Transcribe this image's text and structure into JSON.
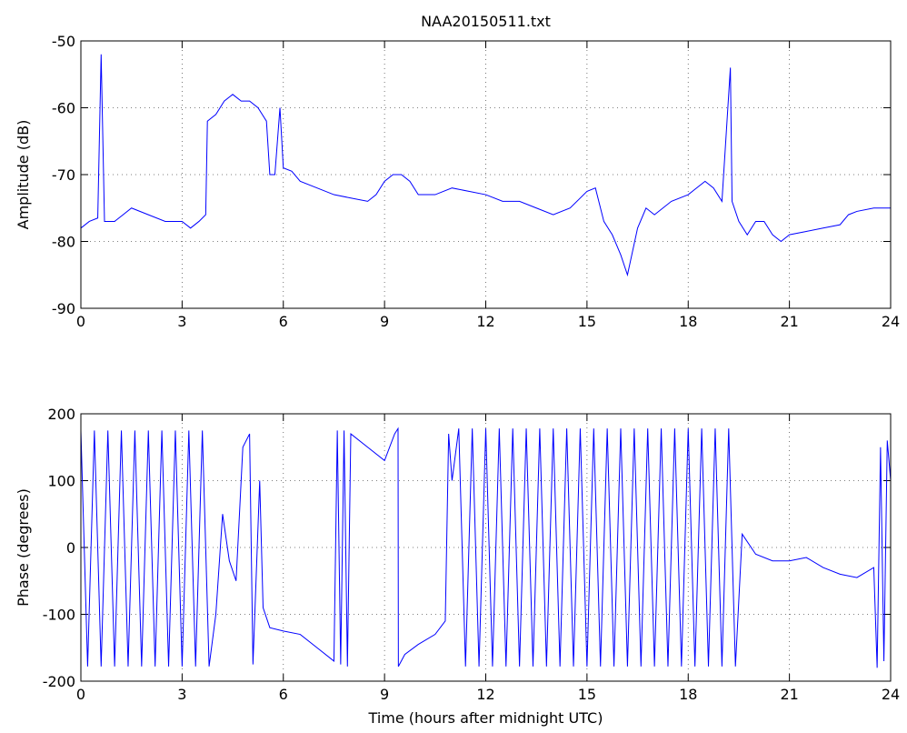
{
  "chart_data": [
    {
      "type": "line",
      "title": "NAA20150511.txt",
      "ylabel": "Amplitude (dB)",
      "grid": true,
      "xlim": [
        0,
        24
      ],
      "xticks": [
        0,
        3,
        6,
        9,
        12,
        15,
        18,
        21,
        24
      ],
      "ylim": [
        -90,
        -50
      ],
      "yticks": [
        -90,
        -80,
        -70,
        -60,
        -50
      ],
      "x": [
        0,
        0.25,
        0.5,
        0.6,
        0.7,
        1,
        1.25,
        1.5,
        2,
        2.5,
        3,
        3.25,
        3.5,
        3.7,
        3.75,
        4,
        4.25,
        4.5,
        4.75,
        5,
        5.25,
        5.5,
        5.6,
        5.75,
        5.9,
        6,
        6.25,
        6.5,
        7,
        7.5,
        8,
        8.5,
        8.75,
        9,
        9.25,
        9.5,
        9.75,
        10,
        10.5,
        11,
        11.5,
        12,
        12.5,
        13,
        13.5,
        14,
        14.5,
        15,
        15.25,
        15.5,
        15.75,
        16,
        16.2,
        16.5,
        16.75,
        17,
        17.5,
        18,
        18.5,
        18.75,
        19,
        19.25,
        19.3,
        19.5,
        19.75,
        20,
        20.25,
        20.5,
        20.75,
        21,
        21.5,
        22,
        22.5,
        22.75,
        23,
        23.5,
        24
      ],
      "series": [
        {
          "color": "#0000ff",
          "values": [
            -78,
            -77,
            -76.5,
            -52,
            -77,
            -77,
            -76,
            -75,
            -76,
            -77,
            -77,
            -78,
            -77,
            -76,
            -62,
            -61,
            -59,
            -58,
            -59,
            -59,
            -60,
            -62,
            -70,
            -70,
            -60,
            -69,
            -69.5,
            -71,
            -72,
            -73,
            -73.5,
            -74,
            -73,
            -71,
            -70,
            -70,
            -71,
            -73,
            -73,
            -72,
            -72.5,
            -73,
            -74,
            -74,
            -75,
            -76,
            -75,
            -72.5,
            -72,
            -77,
            -79,
            -82,
            -85,
            -78,
            -75,
            -76,
            -74,
            -73,
            -71,
            -72,
            -74,
            -54,
            -74,
            -77,
            -79,
            -77,
            -77,
            -79,
            -80,
            -79,
            -78.5,
            -78,
            -77.5,
            -76,
            -75.5,
            -75,
            -75
          ]
        }
      ]
    },
    {
      "type": "line",
      "ylabel": "Phase (degrees)",
      "xlabel": "Time (hours after midnight UTC)",
      "grid": true,
      "xlim": [
        0,
        24
      ],
      "xticks": [
        0,
        3,
        6,
        9,
        12,
        15,
        18,
        21,
        24
      ],
      "ylim": [
        -200,
        200
      ],
      "yticks": [
        -200,
        -100,
        0,
        100,
        200
      ],
      "x": [
        0,
        0.2,
        0.4,
        0.6,
        0.8,
        1,
        1.2,
        1.4,
        1.6,
        1.8,
        2,
        2.2,
        2.4,
        2.6,
        2.8,
        3,
        3.2,
        3.4,
        3.6,
        3.8,
        4,
        4.2,
        4.4,
        4.6,
        4.8,
        5,
        5.1,
        5.3,
        5.4,
        5.6,
        6,
        6.5,
        7,
        7.5,
        7.6,
        7.7,
        7.8,
        7.9,
        8,
        8.5,
        9,
        9.3,
        9.4,
        9.41,
        9.6,
        10,
        10.5,
        10.8,
        10.9,
        11,
        11.2,
        11.4,
        11.6,
        11.8,
        12,
        12.2,
        12.4,
        12.6,
        12.8,
        13,
        13.2,
        13.4,
        13.6,
        13.8,
        14,
        14.2,
        14.4,
        14.6,
        14.8,
        15,
        15.2,
        15.4,
        15.6,
        15.8,
        16,
        16.2,
        16.4,
        16.6,
        16.8,
        17,
        17.2,
        17.4,
        17.6,
        17.8,
        18,
        18.2,
        18.4,
        18.6,
        18.8,
        19,
        19.2,
        19.4,
        19.6,
        20,
        20.5,
        21,
        21.5,
        22,
        22.5,
        23,
        23.5,
        23.6,
        23.7,
        23.8,
        23.9,
        24
      ],
      "series": [
        {
          "color": "#0000ff",
          "values": [
            175,
            -178,
            175,
            -178,
            175,
            -178,
            175,
            -178,
            175,
            -178,
            175,
            -178,
            175,
            -178,
            175,
            -178,
            175,
            -178,
            175,
            -178,
            -100,
            50,
            -20,
            -50,
            150,
            170,
            -175,
            100,
            -90,
            -120,
            -125,
            -130,
            -150,
            -170,
            175,
            -175,
            175,
            -178,
            170,
            150,
            130,
            170,
            178,
            -178,
            -160,
            -145,
            -130,
            -110,
            170,
            100,
            178,
            -178,
            178,
            -178,
            178,
            -178,
            178,
            -178,
            178,
            -178,
            178,
            -178,
            178,
            -178,
            178,
            -178,
            178,
            -178,
            178,
            -178,
            178,
            -178,
            178,
            -178,
            178,
            -178,
            178,
            -178,
            178,
            -178,
            178,
            -178,
            178,
            -178,
            178,
            -178,
            178,
            -178,
            178,
            -178,
            178,
            -178,
            20,
            -10,
            -20,
            -20,
            -15,
            -30,
            -40,
            -45,
            -30,
            -180,
            150,
            -170,
            160,
            100
          ]
        }
      ]
    }
  ]
}
